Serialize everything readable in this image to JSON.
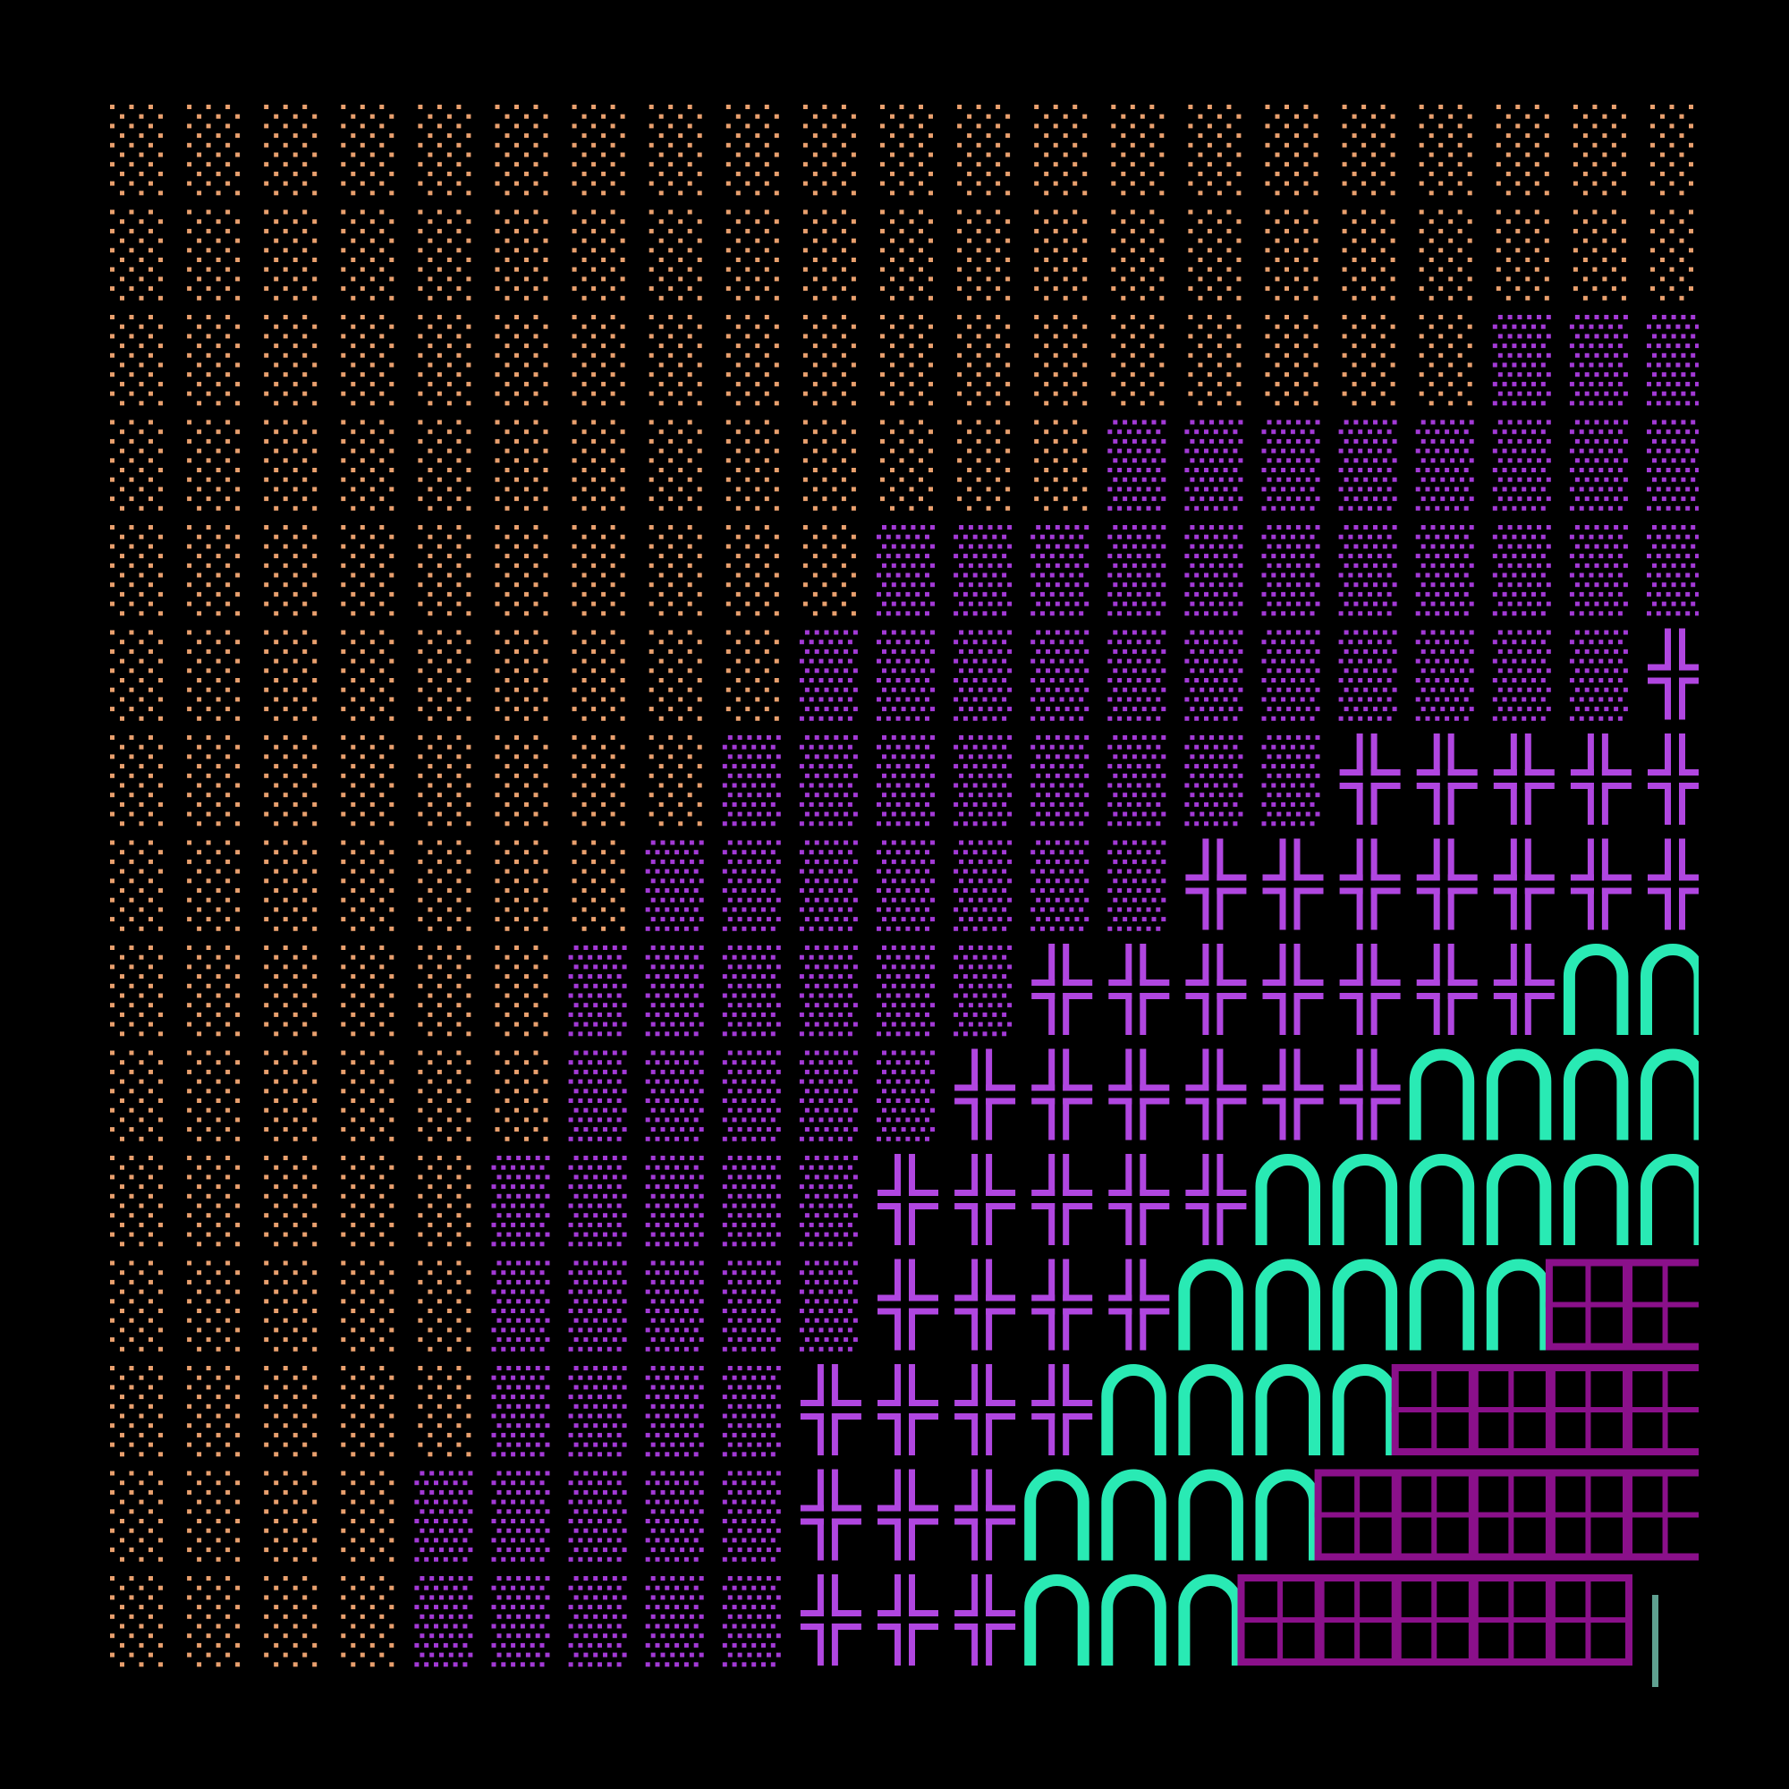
{
  "terminal": {
    "background": "#000000",
    "rows": [
      "░░░░░░░░░░░░░░░░░░░░░",
      "░░░░░░░░░░░░░░░░░░░░░",
      "░░░░░░░░░░░░░░░░░░▒▒▒",
      "░░░░░░░░░░░░░▒▒▒▒▒▒▒▒",
      "░░░░░░░░░░▒▒▒▒▒▒▒▒▒▒▒",
      "░░░░░░░░░▒▒▒▒▒▒▒▒▒▒▒╬",
      "░░░░░░░░▒▒▒▒▒▒▒▒╬╬╬╬╬",
      "░░░░░░░▒▒▒▒▒▒▒╬╬╬╬╬╬╬",
      "░░░░░░▒▒▒▒▒▒╬╬╬╬╬╬╬∩∩",
      "░░░░░░▒▒▒▒▒╬╬╬╬╬╬∩∩∩∩",
      "░░░░░▒▒▒▒▒╬╬╬╬╬∩∩∩∩∩∩",
      "░░░░░▒▒▒▒▒╬╬╬╬∩∩∩∩∩▦▦",
      "░░░░░▒▒▒▒╬╬╬╬∩∩∩∩▦▦▦▦",
      "░░░░▒▒▒▒▒╬╬╬∩∩∩∩▦▦▦▦▦",
      "░░░░▒▒▒▒▒╬╬╬∩∩∩▦▦▦▦▦"
    ],
    "glyph_colors": {
      "░": "#e9a06e",
      "▒": "#a33ad6",
      "╬": "#b046e0",
      "∩": "#29eab4",
      "▦": "#8a108a"
    },
    "cursor": {
      "shape": "bar",
      "color": "#5fa090",
      "row": 14,
      "col": 20
    }
  }
}
